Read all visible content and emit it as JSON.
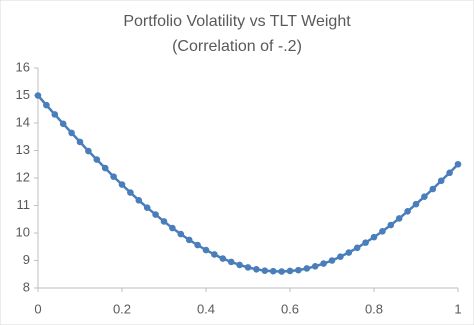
{
  "chart_data": {
    "type": "line",
    "title": "Portfolio Volatility vs TLT Weight",
    "subtitle": "(Correlation of -.2)",
    "x": [
      0,
      0.02,
      0.04,
      0.06,
      0.08,
      0.1,
      0.12,
      0.14,
      0.16,
      0.18,
      0.2,
      0.22,
      0.24,
      0.26,
      0.28,
      0.3,
      0.32,
      0.34,
      0.36,
      0.38,
      0.4,
      0.42,
      0.44,
      0.46,
      0.48,
      0.5,
      0.52,
      0.54,
      0.56,
      0.58,
      0.6,
      0.62,
      0.64,
      0.66,
      0.68,
      0.7,
      0.72,
      0.74,
      0.76,
      0.78,
      0.8,
      0.82,
      0.84,
      0.86,
      0.88,
      0.9,
      0.92,
      0.94,
      0.96,
      0.98,
      1
    ],
    "values": [
      15,
      14.65,
      14.31,
      13.97,
      13.64,
      13.31,
      12.98,
      12.67,
      12.36,
      12.05,
      11.76,
      11.47,
      11.19,
      10.92,
      10.67,
      10.42,
      10.18,
      9.96,
      9.75,
      9.56,
      9.38,
      9.22,
      9.07,
      8.95,
      8.84,
      8.75,
      8.68,
      8.63,
      8.61,
      8.6,
      8.62,
      8.65,
      8.71,
      8.79,
      8.89,
      9,
      9.14,
      9.29,
      9.46,
      9.65,
      9.85,
      10.06,
      10.29,
      10.53,
      10.79,
      11.05,
      11.32,
      11.6,
      11.9,
      12.19,
      12.5
    ],
    "color": "#4a7ebb",
    "xlim": [
      0,
      1
    ],
    "xticks": [
      0,
      0.2,
      0.4,
      0.6,
      0.8,
      1
    ],
    "ylim": [
      8,
      16
    ],
    "yticks": [
      8,
      9,
      10,
      11,
      12,
      13,
      14,
      15,
      16
    ],
    "grid": false
  }
}
